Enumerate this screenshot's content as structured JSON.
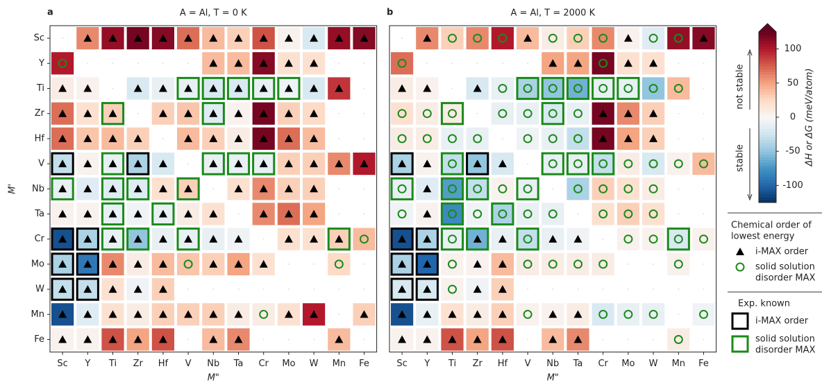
{
  "chart_data": [
    {
      "type": "heatmap",
      "panel": "a",
      "title": "A = Al, T = 0 K",
      "xlabel": "M\"",
      "ylabel": "M'",
      "x_categories": [
        "Sc",
        "Y",
        "Ti",
        "Zr",
        "Hf",
        "V",
        "Nb",
        "Ta",
        "Cr",
        "Mo",
        "W",
        "Mn",
        "Fe"
      ],
      "y_categories": [
        "Sc",
        "Y",
        "Ti",
        "Zr",
        "Hf",
        "V",
        "Nb",
        "Ta",
        "Cr",
        "Mo",
        "W",
        "Mn",
        "Fe"
      ],
      "values": [
        [
          null,
          60,
          110,
          120,
          115,
          70,
          40,
          30,
          80,
          5,
          -20,
          110,
          115
        ],
        [
          100,
          null,
          null,
          null,
          null,
          null,
          40,
          40,
          115,
          20,
          20,
          null,
          null
        ],
        [
          10,
          5,
          null,
          -20,
          -10,
          -10,
          -20,
          -20,
          -10,
          -5,
          -20,
          90,
          null
        ],
        [
          70,
          20,
          30,
          null,
          30,
          35,
          -15,
          5,
          120,
          30,
          25,
          null,
          null
        ],
        [
          70,
          35,
          40,
          30,
          null,
          40,
          30,
          10,
          120,
          70,
          40,
          null,
          null
        ],
        [
          -30,
          5,
          -10,
          -40,
          -20,
          null,
          -10,
          -10,
          -10,
          30,
          30,
          60,
          100
        ],
        [
          -10,
          -15,
          -15,
          -15,
          20,
          30,
          null,
          20,
          60,
          30,
          30,
          null,
          null
        ],
        [
          5,
          5,
          -10,
          -5,
          -10,
          10,
          20,
          null,
          60,
          70,
          50,
          null,
          null
        ],
        [
          -110,
          -40,
          -10,
          -50,
          -10,
          -10,
          -10,
          -5,
          null,
          20,
          20,
          30,
          40
        ],
        [
          -40,
          -90,
          60,
          10,
          40,
          35,
          30,
          50,
          20,
          null,
          null,
          25,
          null
        ],
        [
          -30,
          -30,
          20,
          -5,
          30,
          null,
          null,
          null,
          null,
          null,
          null,
          null,
          null
        ],
        [
          -110,
          -15,
          20,
          10,
          30,
          30,
          30,
          10,
          10,
          20,
          100,
          null,
          30
        ],
        [
          5,
          5,
          80,
          50,
          80,
          null,
          40,
          60,
          null,
          null,
          null,
          40,
          null
        ]
      ],
      "order": [
        [
          null,
          0,
          0,
          0,
          0,
          0,
          0,
          0,
          0,
          0,
          0,
          0,
          0
        ],
        [
          1,
          null,
          null,
          null,
          null,
          null,
          0,
          0,
          0,
          0,
          0,
          null,
          null
        ],
        [
          0,
          0,
          null,
          0,
          0,
          0,
          0,
          0,
          0,
          0,
          0,
          0,
          null
        ],
        [
          0,
          0,
          0,
          null,
          0,
          0,
          0,
          0,
          0,
          0,
          0,
          null,
          null
        ],
        [
          0,
          0,
          0,
          0,
          null,
          0,
          0,
          0,
          0,
          0,
          0,
          null,
          null
        ],
        [
          0,
          0,
          0,
          0,
          0,
          null,
          0,
          0,
          0,
          0,
          0,
          0,
          0
        ],
        [
          0,
          0,
          0,
          0,
          0,
          0,
          null,
          0,
          0,
          0,
          0,
          null,
          null
        ],
        [
          0,
          0,
          0,
          0,
          0,
          0,
          0,
          null,
          0,
          0,
          0,
          null,
          null
        ],
        [
          0,
          0,
          0,
          0,
          0,
          0,
          0,
          0,
          null,
          0,
          0,
          0,
          1
        ],
        [
          0,
          0,
          0,
          0,
          0,
          1,
          0,
          0,
          0,
          null,
          null,
          1,
          null
        ],
        [
          0,
          0,
          0,
          0,
          0,
          null,
          null,
          null,
          null,
          null,
          null,
          null,
          null
        ],
        [
          0,
          0,
          0,
          0,
          0,
          0,
          0,
          0,
          1,
          0,
          0,
          null,
          0
        ],
        [
          0,
          0,
          0,
          0,
          0,
          null,
          0,
          0,
          null,
          null,
          null,
          0,
          null
        ]
      ],
      "known": [
        [
          null,
          null,
          null,
          null,
          null,
          null,
          null,
          null,
          null,
          null,
          null,
          null,
          null
        ],
        [
          null,
          null,
          null,
          null,
          null,
          null,
          null,
          null,
          null,
          null,
          null,
          null,
          null
        ],
        [
          null,
          null,
          null,
          null,
          null,
          1,
          1,
          1,
          1,
          1,
          null,
          null,
          null
        ],
        [
          null,
          null,
          1,
          null,
          null,
          null,
          1,
          null,
          null,
          null,
          null,
          null,
          null
        ],
        [
          null,
          null,
          null,
          null,
          null,
          null,
          null,
          null,
          null,
          null,
          null,
          null,
          null
        ],
        [
          0,
          null,
          1,
          0,
          null,
          null,
          1,
          1,
          1,
          null,
          null,
          null,
          null
        ],
        [
          1,
          null,
          1,
          1,
          null,
          1,
          null,
          null,
          null,
          null,
          null,
          null,
          null
        ],
        [
          null,
          null,
          1,
          null,
          1,
          null,
          null,
          null,
          null,
          null,
          null,
          null,
          null
        ],
        [
          0,
          0,
          1,
          1,
          null,
          1,
          null,
          null,
          null,
          null,
          null,
          1,
          null
        ],
        [
          0,
          0,
          null,
          null,
          null,
          null,
          null,
          null,
          null,
          null,
          null,
          null,
          null
        ],
        [
          0,
          0,
          null,
          null,
          null,
          null,
          null,
          null,
          null,
          null,
          null,
          null,
          null
        ],
        [
          null,
          null,
          null,
          null,
          null,
          null,
          null,
          null,
          null,
          null,
          null,
          null,
          null
        ],
        [
          null,
          null,
          null,
          null,
          null,
          null,
          null,
          null,
          null,
          null,
          null,
          null,
          null
        ]
      ]
    },
    {
      "type": "heatmap",
      "panel": "b",
      "title": "A = Al, T = 2000 K",
      "xlabel": "M\"",
      "x_categories": [
        "Sc",
        "Y",
        "Ti",
        "Zr",
        "Hf",
        "V",
        "Nb",
        "Ta",
        "Cr",
        "Mo",
        "W",
        "Mn",
        "Fe"
      ],
      "y_categories": [
        "Sc",
        "Y",
        "Ti",
        "Zr",
        "Hf",
        "V",
        "Nb",
        "Ta",
        "Cr",
        "Mo",
        "W",
        "Mn",
        "Fe"
      ],
      "values": [
        [
          null,
          60,
          30,
          60,
          100,
          40,
          10,
          30,
          60,
          5,
          -15,
          110,
          115
        ],
        [
          70,
          null,
          null,
          null,
          null,
          null,
          50,
          50,
          120,
          20,
          20,
          null,
          null
        ],
        [
          10,
          5,
          null,
          -20,
          -10,
          -40,
          -50,
          -60,
          -10,
          -10,
          -50,
          40,
          null
        ],
        [
          20,
          10,
          10,
          null,
          -10,
          -10,
          -20,
          -10,
          120,
          60,
          30,
          null,
          null
        ],
        [
          10,
          10,
          -10,
          -10,
          null,
          -5,
          -10,
          -30,
          120,
          50,
          30,
          null,
          null
        ],
        [
          -40,
          5,
          -30,
          -50,
          -20,
          null,
          -10,
          -10,
          -30,
          10,
          -20,
          5,
          40
        ],
        [
          -10,
          -15,
          -70,
          -30,
          5,
          -10,
          null,
          -40,
          30,
          20,
          10,
          null,
          null
        ],
        [
          -5,
          5,
          -80,
          -5,
          -40,
          -10,
          -10,
          null,
          20,
          30,
          20,
          null,
          null
        ],
        [
          -110,
          -40,
          -10,
          -60,
          -10,
          -30,
          -10,
          -5,
          null,
          5,
          5,
          -20,
          5
        ],
        [
          -40,
          -100,
          5,
          5,
          40,
          10,
          10,
          10,
          10,
          null,
          null,
          5,
          null
        ],
        [
          -20,
          -20,
          5,
          -5,
          30,
          null,
          null,
          null,
          null,
          null,
          null,
          null,
          null
        ],
        [
          -110,
          -10,
          20,
          10,
          30,
          5,
          5,
          10,
          -20,
          -10,
          -10,
          null,
          -5
        ],
        [
          5,
          5,
          80,
          50,
          80,
          null,
          40,
          60,
          null,
          null,
          null,
          10,
          null
        ]
      ],
      "order": [
        [
          null,
          0,
          1,
          1,
          1,
          0,
          1,
          1,
          1,
          0,
          1,
          1,
          0
        ],
        [
          1,
          null,
          null,
          null,
          null,
          null,
          0,
          0,
          1,
          0,
          0,
          null,
          null
        ],
        [
          0,
          0,
          null,
          0,
          1,
          1,
          1,
          1,
          1,
          1,
          1,
          1,
          null
        ],
        [
          1,
          1,
          1,
          null,
          1,
          1,
          1,
          1,
          0,
          0,
          0,
          null,
          null
        ],
        [
          1,
          1,
          1,
          1,
          null,
          1,
          1,
          1,
          0,
          0,
          0,
          null,
          null
        ],
        [
          0,
          0,
          1,
          0,
          0,
          null,
          1,
          1,
          1,
          1,
          1,
          1,
          1
        ],
        [
          1,
          0,
          1,
          1,
          1,
          1,
          null,
          1,
          1,
          1,
          1,
          null,
          null
        ],
        [
          1,
          0,
          1,
          1,
          1,
          1,
          1,
          null,
          1,
          1,
          1,
          null,
          null
        ],
        [
          0,
          0,
          1,
          0,
          0,
          1,
          0,
          0,
          null,
          1,
          1,
          1,
          1
        ],
        [
          0,
          0,
          1,
          0,
          0,
          1,
          1,
          1,
          1,
          null,
          null,
          1,
          null
        ],
        [
          0,
          0,
          1,
          0,
          0,
          null,
          null,
          null,
          null,
          null,
          null,
          null,
          null
        ],
        [
          0,
          0,
          0,
          0,
          0,
          1,
          0,
          0,
          1,
          1,
          1,
          null,
          1
        ],
        [
          0,
          0,
          0,
          0,
          0,
          null,
          0,
          0,
          null,
          null,
          null,
          1,
          null
        ]
      ],
      "known": [
        [
          null,
          null,
          null,
          null,
          null,
          null,
          null,
          null,
          null,
          null,
          null,
          null,
          null
        ],
        [
          null,
          null,
          null,
          null,
          null,
          null,
          null,
          null,
          null,
          null,
          null,
          null,
          null
        ],
        [
          null,
          null,
          null,
          null,
          null,
          1,
          1,
          1,
          1,
          1,
          null,
          null,
          null
        ],
        [
          null,
          null,
          1,
          null,
          null,
          null,
          1,
          null,
          null,
          null,
          null,
          null,
          null
        ],
        [
          null,
          null,
          null,
          null,
          null,
          null,
          null,
          null,
          null,
          null,
          null,
          null,
          null
        ],
        [
          0,
          null,
          1,
          0,
          null,
          null,
          1,
          1,
          1,
          null,
          null,
          null,
          null
        ],
        [
          1,
          null,
          1,
          1,
          null,
          1,
          null,
          null,
          null,
          null,
          null,
          null,
          null
        ],
        [
          null,
          null,
          1,
          null,
          1,
          null,
          null,
          null,
          null,
          null,
          null,
          null,
          null
        ],
        [
          0,
          0,
          1,
          1,
          null,
          1,
          null,
          null,
          null,
          null,
          null,
          1,
          null
        ],
        [
          0,
          0,
          null,
          null,
          null,
          null,
          null,
          null,
          null,
          null,
          null,
          null,
          null
        ],
        [
          0,
          0,
          null,
          null,
          null,
          null,
          null,
          null,
          null,
          null,
          null,
          null,
          null
        ],
        [
          null,
          null,
          null,
          null,
          null,
          null,
          null,
          null,
          null,
          null,
          null,
          null,
          null
        ],
        [
          null,
          null,
          null,
          null,
          null,
          null,
          null,
          null,
          null,
          null,
          null,
          null,
          null
        ]
      ]
    }
  ],
  "colorbar": {
    "label": "ΔH or ΔG (meV/atom)",
    "clim": [
      -125,
      125
    ],
    "ticks": [
      -100,
      -50,
      0,
      50,
      100
    ],
    "above": "not stable",
    "below": "stable",
    "colors": [
      "#053061",
      "#2166ac",
      "#4393c3",
      "#92c5de",
      "#d1e5f0",
      "#f7f7f7",
      "#fddbc7",
      "#f4a582",
      "#d6604d",
      "#b2182b",
      "#67001f"
    ]
  },
  "legend": {
    "order_title": [
      "Chemical order of",
      "lowest energy"
    ],
    "order_entries": [
      {
        "label": [
          "i-MAX order"
        ],
        "color": "#000000"
      },
      {
        "label": [
          "solid solution",
          "disorder MAX"
        ],
        "color": "#1a8a1a"
      }
    ],
    "known_title": "Exp. known",
    "known_entries": [
      {
        "label": [
          "i-MAX order"
        ],
        "color": "#000000"
      },
      {
        "label": [
          "solid solution",
          "disorder MAX"
        ],
        "color": "#1a8a1a"
      }
    ]
  }
}
